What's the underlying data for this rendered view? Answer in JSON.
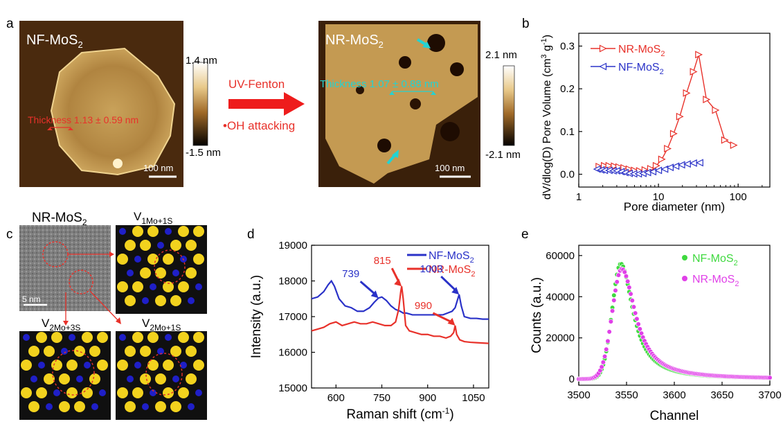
{
  "panel_a": {
    "letter": "a",
    "left_image": {
      "label": "NF-MoS",
      "label_sub": "2",
      "thickness": "Thickness 1.13 ± 0.59 nm",
      "scalebar": "100 nm"
    },
    "left_colorbar": {
      "max": "1.4 nm",
      "min": "-1.5 nm"
    },
    "arrow_top": "UV-Fenton",
    "arrow_bottom": "•OH attacking",
    "right_image": {
      "label": "NR-MoS",
      "label_sub": "2",
      "thickness": "Thickness 1.07 ± 0.88 nm",
      "scalebar": "100 nm"
    },
    "right_colorbar": {
      "max": "2.1 nm",
      "min": "-2.1 nm"
    }
  },
  "panel_c": {
    "letter": "c",
    "tem_label": "NR-MoS",
    "tem_label_sub": "2",
    "tem_scalebar": "5 nm",
    "v1_label": "V",
    "v1_sub": "1Mo+1S",
    "v2_label": "V",
    "v2_sub": "2Mo+3S",
    "v3_label": "V",
    "v3_sub": "2Mo+1S",
    "colors": {
      "mo": "#1f1fc8",
      "s": "#f2d21e",
      "background": "#101010",
      "defect": "#e0302a"
    }
  },
  "chart_data": [
    {
      "panel": "b",
      "type": "line",
      "xscale": "log",
      "xlabel": "Pore diameter (nm)",
      "ylabel": "dV/dlog(D) Pore Volume (cm",
      "ylabel_sup": "3",
      "ylabel_mid": " g",
      "ylabel_sup2": "-1",
      "ylabel_end": ")",
      "xlim": [
        1,
        250
      ],
      "ylim": [
        -0.03,
        0.33
      ],
      "xticks": [
        1,
        10,
        100
      ],
      "xtick_labels": [
        "1",
        "10",
        "100"
      ],
      "yticks": [
        0.0,
        0.1,
        0.2,
        0.3
      ],
      "ytick_labels": [
        "0.0",
        "0.1",
        "0.2",
        "0.3"
      ],
      "legend": "top-right",
      "series": [
        {
          "name": "NR-MoS",
          "name_sub": "2",
          "color": "#e8312a",
          "marker": "triangle-right",
          "x": [
            1.8,
            2.1,
            2.4,
            2.8,
            3.2,
            3.7,
            4.3,
            5.0,
            5.8,
            6.8,
            8.0,
            9.4,
            11.0,
            13.0,
            15.5,
            18.5,
            22.5,
            27.5,
            32.0,
            40.0,
            52.0,
            68.0,
            88.0
          ],
          "y": [
            0.018,
            0.02,
            0.02,
            0.019,
            0.017,
            0.015,
            0.012,
            0.009,
            0.008,
            0.01,
            0.013,
            0.02,
            0.035,
            0.06,
            0.095,
            0.135,
            0.19,
            0.24,
            0.28,
            0.175,
            0.15,
            0.08,
            0.068
          ]
        },
        {
          "name": "NF-MoS",
          "name_sub": "2",
          "color": "#2a32c8",
          "marker": "triangle-left",
          "x": [
            1.7,
            1.9,
            2.1,
            2.4,
            2.7,
            3.0,
            3.4,
            3.8,
            4.3,
            4.9,
            5.6,
            6.4,
            7.3,
            8.5,
            10.0,
            12.0,
            14.0,
            16.5,
            19.5,
            23.0,
            27.5,
            33.0
          ],
          "y": [
            0.012,
            0.01,
            0.009,
            0.009,
            0.008,
            0.008,
            0.006,
            0.004,
            0.002,
            0.001,
            0.001,
            0.002,
            0.004,
            0.006,
            0.009,
            0.012,
            0.016,
            0.019,
            0.022,
            0.024,
            0.026,
            0.027
          ]
        }
      ]
    },
    {
      "panel": "d",
      "type": "line",
      "xlabel": "Raman shift (cm",
      "xlabel_sup": "-1",
      "xlabel_end": ")",
      "ylabel": "Intensity (a.u.)",
      "xlim": [
        520,
        1100
      ],
      "ylim": [
        15000,
        19000
      ],
      "xticks": [
        600,
        750,
        900,
        1050
      ],
      "xtick_labels": [
        "600",
        "750",
        "900",
        "1050"
      ],
      "yticks": [
        15000,
        16000,
        17000,
        18000,
        19000
      ],
      "ytick_labels": [
        "15000",
        "16000",
        "17000",
        "18000",
        "19000"
      ],
      "legend": "top-right",
      "annotations": [
        {
          "text": "739",
          "color": "#2a32c8",
          "x": 739,
          "y": 17520
        },
        {
          "text": "815",
          "color": "#e8312a",
          "x": 815,
          "y": 17850
        },
        {
          "text": "1003",
          "color": "#2a32c8",
          "x": 1003,
          "y": 17620
        },
        {
          "text": "990",
          "color": "#e8312a",
          "x": 990,
          "y": 16750
        }
      ],
      "series": [
        {
          "name": "NF-MoS",
          "name_sub": "2",
          "color": "#2a32c8",
          "x": [
            520,
            540,
            560,
            575,
            585,
            595,
            610,
            630,
            650,
            670,
            690,
            710,
            725,
            739,
            750,
            765,
            780,
            795,
            810,
            820,
            830,
            850,
            870,
            890,
            910,
            930,
            950,
            965,
            980,
            990,
            997,
            1003,
            1010,
            1020,
            1040,
            1060,
            1080,
            1100
          ],
          "y": [
            17500,
            17550,
            17700,
            17900,
            18000,
            17850,
            17500,
            17300,
            17250,
            17150,
            17150,
            17250,
            17400,
            17520,
            17550,
            17450,
            17300,
            17200,
            17150,
            17100,
            17100,
            17050,
            17050,
            17050,
            17050,
            17050,
            17050,
            17100,
            17150,
            17250,
            17450,
            17620,
            17300,
            17000,
            16950,
            16950,
            16930,
            16930
          ]
        },
        {
          "name": "NR-MoS",
          "name_sub": "2",
          "color": "#e8312a",
          "x": [
            520,
            540,
            560,
            580,
            600,
            620,
            640,
            660,
            680,
            700,
            720,
            740,
            760,
            780,
            795,
            805,
            812,
            815,
            820,
            828,
            840,
            860,
            880,
            900,
            920,
            940,
            960,
            975,
            985,
            990,
            995,
            1005,
            1020,
            1040,
            1060,
            1080,
            1100
          ],
          "y": [
            16600,
            16650,
            16700,
            16800,
            16850,
            16750,
            16800,
            16850,
            16800,
            16800,
            16850,
            16800,
            16750,
            16750,
            16850,
            17200,
            17700,
            17850,
            17500,
            16750,
            16600,
            16550,
            16500,
            16500,
            16450,
            16450,
            16400,
            16450,
            16550,
            16750,
            16500,
            16350,
            16300,
            16280,
            16270,
            16260,
            16250
          ]
        }
      ]
    },
    {
      "panel": "e",
      "type": "scatter",
      "xlabel": "Channel",
      "ylabel": "Counts (a.u.)",
      "xlim": [
        3500,
        3700
      ],
      "ylim": [
        -3000,
        65000
      ],
      "xticks": [
        3500,
        3550,
        3600,
        3650,
        3700
      ],
      "xtick_labels": [
        "3500",
        "3550",
        "3600",
        "3650",
        "3700"
      ],
      "yticks": [
        0,
        20000,
        40000,
        60000
      ],
      "ytick_labels": [
        "0",
        "20000",
        "40000",
        "60000"
      ],
      "legend": "top-right",
      "series": [
        {
          "name": "NF-MoS",
          "name_sub": "2",
          "color": "#3fd93f",
          "peak_x": 3544,
          "peak_y": 56000,
          "rise_sigma": 9,
          "decay_tau": 17
        },
        {
          "name": "NR-MoS",
          "name_sub": "2",
          "color": "#e040e8",
          "peak_x": 3545,
          "peak_y": 53500,
          "rise_sigma": 10,
          "decay_tau": 19
        }
      ]
    }
  ],
  "panel_letters": {
    "b": "b",
    "d": "d",
    "e": "e"
  }
}
